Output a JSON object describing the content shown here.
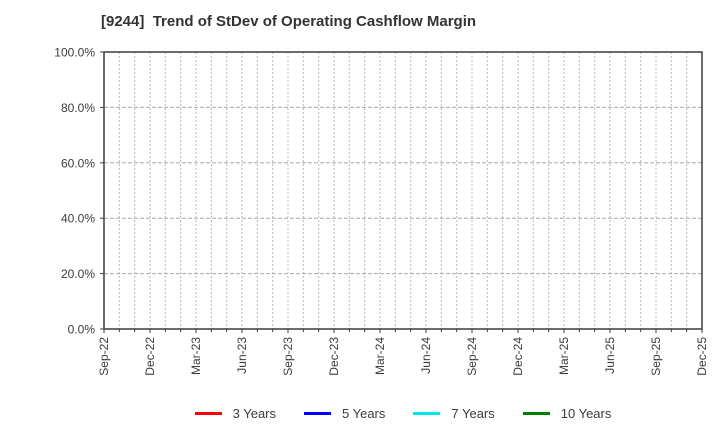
{
  "title": "[9244]  Trend of StDev of Operating Cashflow Margin",
  "chart_data": {
    "type": "line",
    "title": "[9244]  Trend of StDev of Operating Cashflow Margin",
    "x_tick_labels": [
      "Sep-22",
      "Dec-22",
      "Mar-23",
      "Jun-23",
      "Sep-23",
      "Dec-23",
      "Mar-24",
      "Jun-24",
      "Sep-24",
      "Dec-24",
      "Mar-25",
      "Jun-25",
      "Sep-25",
      "Dec-25"
    ],
    "months_between_labeled_ticks": 3,
    "minor_gridlines": "monthly",
    "y_tick_labels": [
      "0.0%",
      "20.0%",
      "40.0%",
      "60.0%",
      "80.0%",
      "100.0%"
    ],
    "ylim": [
      0,
      100
    ],
    "y_tick_step": 20,
    "grid": true,
    "legend_position": "bottom",
    "plot_empty": true,
    "series": [
      {
        "name": "3 Years",
        "color": "#ff0000",
        "values": []
      },
      {
        "name": "5 Years",
        "color": "#0000ff",
        "values": []
      },
      {
        "name": "7 Years",
        "color": "#00e5ee",
        "values": []
      },
      {
        "name": "10 Years",
        "color": "#008000",
        "values": []
      }
    ]
  },
  "colors": {
    "text": "#3c3c3c",
    "title_text": "#333333",
    "plot_border": "#3c3c3c",
    "gridline_v": "#b8b8b8",
    "gridline_h": "#aaaaaa",
    "background": "#ffffff"
  }
}
